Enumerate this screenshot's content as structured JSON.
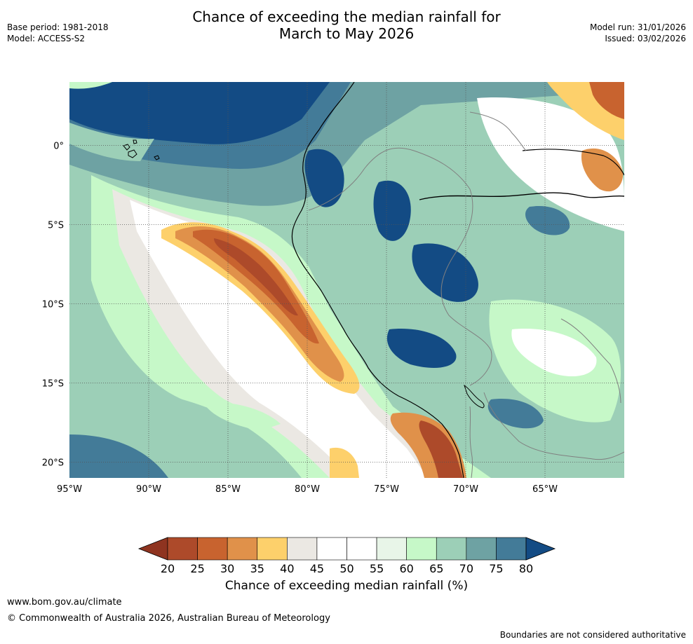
{
  "title": {
    "line1": "Chance of exceeding the median rainfall for",
    "line2": "March to May 2026"
  },
  "meta_left": {
    "base_period": "Base period: 1981-2018",
    "model": "Model: ACCESS-S2"
  },
  "meta_right": {
    "model_run": "Model run: 31/01/2026",
    "issued": "Issued: 03/02/2026"
  },
  "map": {
    "lon_range": [
      -95,
      -60
    ],
    "lat_range": [
      -21,
      4
    ],
    "lon_ticks": [
      "95°W",
      "90°W",
      "85°W",
      "80°W",
      "75°W",
      "70°W",
      "65°W"
    ],
    "lat_ticks": [
      "0°",
      "5°S",
      "10°S",
      "15°S",
      "20°S"
    ],
    "gridlines": true
  },
  "colorbar": {
    "label": "Chance of exceeding median rainfall (%)",
    "ticks": [
      "20",
      "25",
      "30",
      "35",
      "40",
      "45",
      "50",
      "55",
      "60",
      "65",
      "70",
      "75",
      "80"
    ],
    "under_color": "#8f3420",
    "over_color": "#134b84",
    "bin_colors": [
      "#ad4a2a",
      "#c8632f",
      "#e0914a",
      "#fdd06b",
      "#ebe8e3",
      "#ffffff",
      "#ffffff",
      "#e8f5e8",
      "#c6f8c8",
      "#9ccfb7",
      "#6ea2a3",
      "#437b98"
    ]
  },
  "footer": {
    "url": "www.bom.gov.au/climate",
    "copyright": "© Commonwealth of Australia 2026, Australian Bureau of Meteorology",
    "note": "Boundaries are not considered authoritative"
  }
}
